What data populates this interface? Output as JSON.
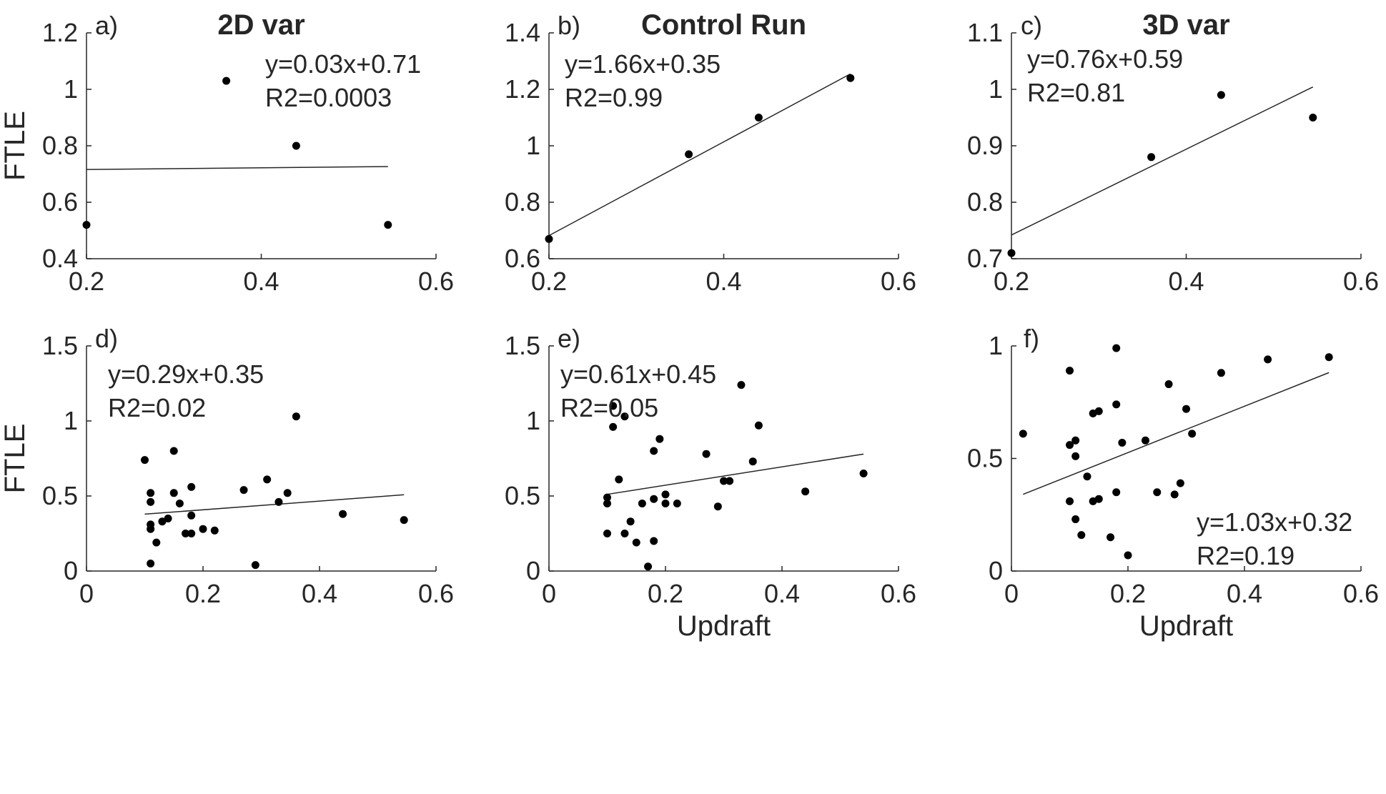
{
  "chart_data": [
    {
      "panel": "a)",
      "title": "2D var",
      "type": "scatter",
      "xlabel": "",
      "ylabel": "FTLE",
      "xlim": [
        0.2,
        0.6
      ],
      "ylim": [
        0.4,
        1.2
      ],
      "xticks": [
        "0.2",
        "0.4",
        "0.6"
      ],
      "yticks": [
        "0.4",
        "0.6",
        "0.8",
        "1",
        "1.2"
      ],
      "points": [
        [
          0.2,
          0.52
        ],
        [
          0.36,
          1.03
        ],
        [
          0.44,
          0.8
        ],
        [
          0.545,
          0.52
        ]
      ],
      "fit": {
        "slope": 0.03,
        "intercept": 0.71,
        "x_range": [
          0.2,
          0.545
        ]
      },
      "annotation": {
        "line1": "y=0.03x+0.71",
        "line2": "R2=0.0003"
      }
    },
    {
      "panel": "b)",
      "title": "Control Run",
      "type": "scatter",
      "xlabel": "",
      "ylabel": "",
      "xlim": [
        0.2,
        0.6
      ],
      "ylim": [
        0.6,
        1.4
      ],
      "xticks": [
        "0.2",
        "0.4",
        "0.6"
      ],
      "yticks": [
        "0.6",
        "0.8",
        "1",
        "1.2",
        "1.4"
      ],
      "points": [
        [
          0.2,
          0.67
        ],
        [
          0.36,
          0.97
        ],
        [
          0.44,
          1.1
        ],
        [
          0.545,
          1.24
        ]
      ],
      "fit": {
        "slope": 1.66,
        "intercept": 0.35,
        "x_range": [
          0.2,
          0.545
        ]
      },
      "annotation": {
        "line1": "y=1.66x+0.35",
        "line2": "R2=0.99"
      }
    },
    {
      "panel": "c)",
      "title": "3D var",
      "type": "scatter",
      "xlabel": "",
      "ylabel": "",
      "xlim": [
        0.2,
        0.6
      ],
      "ylim": [
        0.7,
        1.1
      ],
      "xticks": [
        "0.2",
        "0.4",
        "0.6"
      ],
      "yticks": [
        "0.7",
        "0.8",
        "0.9",
        "1",
        "1.1"
      ],
      "points": [
        [
          0.2,
          0.71
        ],
        [
          0.36,
          0.88
        ],
        [
          0.44,
          0.99
        ],
        [
          0.545,
          0.95
        ]
      ],
      "fit": {
        "slope": 0.76,
        "intercept": 0.59,
        "x_range": [
          0.2,
          0.545
        ]
      },
      "annotation": {
        "line1": "y=0.76x+0.59",
        "line2": "R2=0.81"
      }
    },
    {
      "panel": "d)",
      "title": "",
      "type": "scatter",
      "xlabel": "",
      "ylabel": "FTLE",
      "xlim": [
        0,
        0.6
      ],
      "ylim": [
        0,
        1.5
      ],
      "xticks": [
        "0",
        "0.2",
        "0.4",
        "0.6"
      ],
      "yticks": [
        "0",
        "0.5",
        "1",
        "1.5"
      ],
      "points": [
        [
          0.1,
          0.74
        ],
        [
          0.11,
          0.52
        ],
        [
          0.11,
          0.46
        ],
        [
          0.11,
          0.31
        ],
        [
          0.11,
          0.28
        ],
        [
          0.11,
          0.05
        ],
        [
          0.12,
          0.19
        ],
        [
          0.13,
          0.33
        ],
        [
          0.14,
          0.35
        ],
        [
          0.15,
          0.8
        ],
        [
          0.15,
          0.52
        ],
        [
          0.16,
          0.45
        ],
        [
          0.17,
          0.25
        ],
        [
          0.18,
          0.56
        ],
        [
          0.18,
          0.37
        ],
        [
          0.18,
          0.25
        ],
        [
          0.2,
          0.28
        ],
        [
          0.22,
          0.27
        ],
        [
          0.27,
          0.54
        ],
        [
          0.29,
          0.04
        ],
        [
          0.31,
          0.61
        ],
        [
          0.33,
          0.46
        ],
        [
          0.345,
          0.52
        ],
        [
          0.36,
          1.03
        ],
        [
          0.44,
          0.38
        ],
        [
          0.545,
          0.34
        ]
      ],
      "fit": {
        "slope": 0.29,
        "intercept": 0.35,
        "x_range": [
          0.1,
          0.545
        ]
      },
      "annotation": {
        "line1": "y=0.29x+0.35",
        "line2": "R2=0.02"
      }
    },
    {
      "panel": "e)",
      "title": "",
      "type": "scatter",
      "xlabel": "Updraft",
      "ylabel": "",
      "xlim": [
        0,
        0.6
      ],
      "ylim": [
        0,
        1.5
      ],
      "xticks": [
        "0",
        "0.2",
        "0.4",
        "0.6"
      ],
      "yticks": [
        "0",
        "0.5",
        "1",
        "1.5"
      ],
      "points": [
        [
          0.1,
          0.49
        ],
        [
          0.1,
          0.45
        ],
        [
          0.1,
          0.25
        ],
        [
          0.11,
          1.1
        ],
        [
          0.11,
          0.96
        ],
        [
          0.12,
          0.61
        ],
        [
          0.13,
          1.03
        ],
        [
          0.13,
          0.25
        ],
        [
          0.14,
          0.33
        ],
        [
          0.15,
          0.19
        ],
        [
          0.16,
          0.45
        ],
        [
          0.17,
          0.03
        ],
        [
          0.18,
          0.8
        ],
        [
          0.18,
          0.48
        ],
        [
          0.18,
          0.2
        ],
        [
          0.19,
          0.88
        ],
        [
          0.2,
          0.51
        ],
        [
          0.2,
          0.45
        ],
        [
          0.22,
          0.45
        ],
        [
          0.27,
          0.78
        ],
        [
          0.29,
          0.43
        ],
        [
          0.3,
          0.6
        ],
        [
          0.31,
          0.6
        ],
        [
          0.33,
          1.24
        ],
        [
          0.35,
          0.73
        ],
        [
          0.36,
          0.97
        ],
        [
          0.44,
          0.53
        ],
        [
          0.54,
          0.65
        ]
      ],
      "fit": {
        "slope": 0.61,
        "intercept": 0.45,
        "x_range": [
          0.1,
          0.54
        ]
      },
      "annotation": {
        "line1": "y=0.61x+0.45",
        "line2": "R2=0.05"
      }
    },
    {
      "panel": "f)",
      "title": "",
      "type": "scatter",
      "xlabel": "Updraft",
      "ylabel": "",
      "xlim": [
        0,
        0.6
      ],
      "ylim": [
        0,
        1
      ],
      "xticks": [
        "0",
        "0.2",
        "0.4",
        "0.6"
      ],
      "yticks": [
        "0",
        "0.5",
        "1"
      ],
      "points": [
        [
          0.02,
          0.61
        ],
        [
          0.1,
          0.89
        ],
        [
          0.1,
          0.56
        ],
        [
          0.1,
          0.31
        ],
        [
          0.11,
          0.58
        ],
        [
          0.11,
          0.51
        ],
        [
          0.11,
          0.23
        ],
        [
          0.12,
          0.16
        ],
        [
          0.13,
          0.42
        ],
        [
          0.14,
          0.7
        ],
        [
          0.14,
          0.31
        ],
        [
          0.15,
          0.71
        ],
        [
          0.15,
          0.32
        ],
        [
          0.17,
          0.15
        ],
        [
          0.18,
          0.99
        ],
        [
          0.18,
          0.74
        ],
        [
          0.18,
          0.35
        ],
        [
          0.19,
          0.57
        ],
        [
          0.2,
          0.07
        ],
        [
          0.23,
          0.58
        ],
        [
          0.25,
          0.35
        ],
        [
          0.27,
          0.83
        ],
        [
          0.28,
          0.34
        ],
        [
          0.29,
          0.39
        ],
        [
          0.3,
          0.72
        ],
        [
          0.31,
          0.61
        ],
        [
          0.36,
          0.88
        ],
        [
          0.44,
          0.94
        ],
        [
          0.545,
          0.95
        ]
      ],
      "fit": {
        "slope": 1.03,
        "intercept": 0.32,
        "x_range": [
          0.02,
          0.545
        ]
      },
      "annotation": {
        "line1": "y=1.03x+0.32",
        "line2": "R2=0.19"
      }
    }
  ]
}
